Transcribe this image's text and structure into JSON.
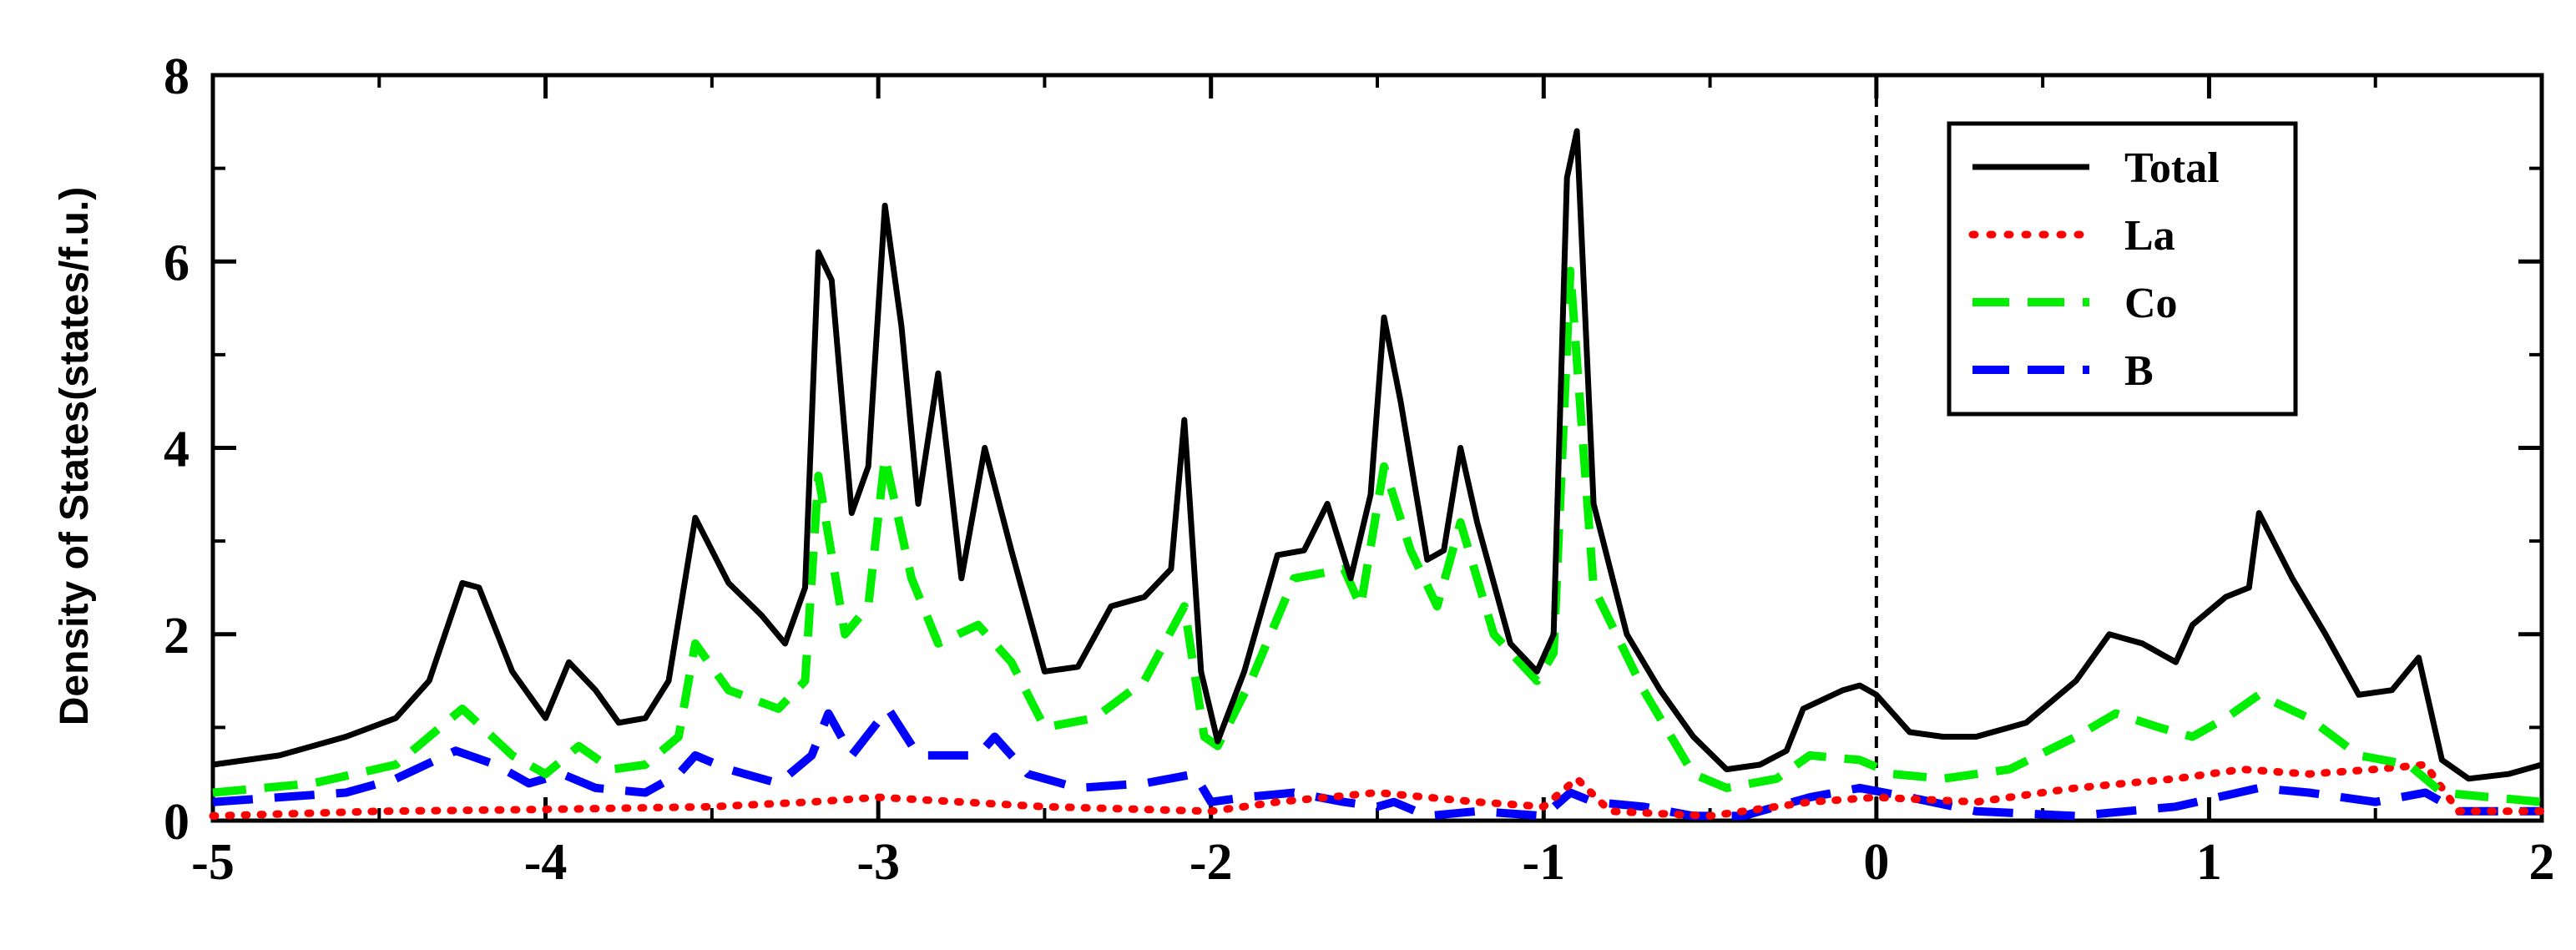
{
  "chart_data": {
    "type": "line",
    "title": "",
    "xlabel": "",
    "ylabel": "Density of States(states/f.u.)",
    "xlim": [
      -5,
      2
    ],
    "ylim": [
      0,
      8
    ],
    "x_ticks": [
      "-5",
      "-4",
      "-3",
      "-2",
      "-1",
      "0",
      "1",
      "2"
    ],
    "y_ticks": [
      "0",
      "2",
      "4",
      "6",
      "8"
    ],
    "grid": false,
    "legend_position": "top-right",
    "fermi_level_marker": 0,
    "series": [
      {
        "name": "Total",
        "color": "#000000",
        "style": "solid",
        "points": [
          [
            -5.0,
            0.6
          ],
          [
            -4.8,
            0.7
          ],
          [
            -4.6,
            0.9
          ],
          [
            -4.45,
            1.1
          ],
          [
            -4.35,
            1.5
          ],
          [
            -4.25,
            2.55
          ],
          [
            -4.2,
            2.5
          ],
          [
            -4.1,
            1.6
          ],
          [
            -4.0,
            1.1
          ],
          [
            -3.93,
            1.7
          ],
          [
            -3.85,
            1.4
          ],
          [
            -3.78,
            1.05
          ],
          [
            -3.7,
            1.1
          ],
          [
            -3.63,
            1.5
          ],
          [
            -3.55,
            3.25
          ],
          [
            -3.45,
            2.55
          ],
          [
            -3.35,
            2.2
          ],
          [
            -3.28,
            1.9
          ],
          [
            -3.22,
            2.5
          ],
          [
            -3.18,
            6.1
          ],
          [
            -3.14,
            5.8
          ],
          [
            -3.08,
            3.3
          ],
          [
            -3.03,
            3.8
          ],
          [
            -2.98,
            6.6
          ],
          [
            -2.93,
            5.3
          ],
          [
            -2.88,
            3.4
          ],
          [
            -2.82,
            4.8
          ],
          [
            -2.75,
            2.6
          ],
          [
            -2.68,
            4.0
          ],
          [
            -2.6,
            2.9
          ],
          [
            -2.5,
            1.6
          ],
          [
            -2.4,
            1.65
          ],
          [
            -2.3,
            2.3
          ],
          [
            -2.2,
            2.4
          ],
          [
            -2.12,
            2.7
          ],
          [
            -2.08,
            4.3
          ],
          [
            -2.03,
            1.6
          ],
          [
            -1.98,
            0.85
          ],
          [
            -1.9,
            1.6
          ],
          [
            -1.8,
            2.85
          ],
          [
            -1.72,
            2.9
          ],
          [
            -1.65,
            3.4
          ],
          [
            -1.58,
            2.6
          ],
          [
            -1.52,
            3.5
          ],
          [
            -1.48,
            5.4
          ],
          [
            -1.43,
            4.5
          ],
          [
            -1.35,
            2.8
          ],
          [
            -1.3,
            2.9
          ],
          [
            -1.25,
            4.0
          ],
          [
            -1.2,
            3.2
          ],
          [
            -1.1,
            1.9
          ],
          [
            -1.02,
            1.6
          ],
          [
            -0.97,
            2.0
          ],
          [
            -0.93,
            6.9
          ],
          [
            -0.9,
            7.4
          ],
          [
            -0.85,
            3.4
          ],
          [
            -0.75,
            2.0
          ],
          [
            -0.65,
            1.4
          ],
          [
            -0.55,
            0.9
          ],
          [
            -0.45,
            0.55
          ],
          [
            -0.35,
            0.6
          ],
          [
            -0.27,
            0.75
          ],
          [
            -0.22,
            1.2
          ],
          [
            -0.1,
            1.4
          ],
          [
            -0.05,
            1.45
          ],
          [
            0.0,
            1.35
          ],
          [
            0.1,
            0.95
          ],
          [
            0.2,
            0.9
          ],
          [
            0.3,
            0.9
          ],
          [
            0.45,
            1.05
          ],
          [
            0.6,
            1.5
          ],
          [
            0.7,
            2.0
          ],
          [
            0.8,
            1.9
          ],
          [
            0.9,
            1.7
          ],
          [
            0.95,
            2.1
          ],
          [
            1.05,
            2.4
          ],
          [
            1.12,
            2.5
          ],
          [
            1.15,
            3.3
          ],
          [
            1.25,
            2.6
          ],
          [
            1.35,
            2.0
          ],
          [
            1.45,
            1.35
          ],
          [
            1.55,
            1.4
          ],
          [
            1.63,
            1.75
          ],
          [
            1.7,
            0.65
          ],
          [
            1.78,
            0.45
          ],
          [
            1.9,
            0.5
          ],
          [
            2.0,
            0.6
          ]
        ]
      },
      {
        "name": "La",
        "color": "#ff0000",
        "style": "dotted",
        "points": [
          [
            -5.0,
            0.05
          ],
          [
            -4.5,
            0.1
          ],
          [
            -4.0,
            0.12
          ],
          [
            -3.5,
            0.15
          ],
          [
            -3.2,
            0.2
          ],
          [
            -3.0,
            0.25
          ],
          [
            -2.5,
            0.15
          ],
          [
            -2.0,
            0.1
          ],
          [
            -1.8,
            0.2
          ],
          [
            -1.5,
            0.3
          ],
          [
            -1.2,
            0.2
          ],
          [
            -1.0,
            0.15
          ],
          [
            -0.9,
            0.45
          ],
          [
            -0.8,
            0.1
          ],
          [
            -0.5,
            0.05
          ],
          [
            -0.2,
            0.2
          ],
          [
            0.0,
            0.25
          ],
          [
            0.3,
            0.2
          ],
          [
            0.6,
            0.35
          ],
          [
            0.9,
            0.45
          ],
          [
            1.1,
            0.55
          ],
          [
            1.3,
            0.5
          ],
          [
            1.5,
            0.55
          ],
          [
            1.65,
            0.6
          ],
          [
            1.75,
            0.1
          ],
          [
            2.0,
            0.1
          ]
        ]
      },
      {
        "name": "Co",
        "color": "#00ee00",
        "style": "dashed",
        "points": [
          [
            -5.0,
            0.3
          ],
          [
            -4.7,
            0.4
          ],
          [
            -4.45,
            0.6
          ],
          [
            -4.25,
            1.2
          ],
          [
            -4.1,
            0.7
          ],
          [
            -4.0,
            0.5
          ],
          [
            -3.9,
            0.8
          ],
          [
            -3.8,
            0.55
          ],
          [
            -3.7,
            0.6
          ],
          [
            -3.6,
            0.9
          ],
          [
            -3.55,
            1.9
          ],
          [
            -3.45,
            1.4
          ],
          [
            -3.3,
            1.2
          ],
          [
            -3.22,
            1.5
          ],
          [
            -3.18,
            3.7
          ],
          [
            -3.1,
            2.0
          ],
          [
            -3.03,
            2.3
          ],
          [
            -2.98,
            3.9
          ],
          [
            -2.9,
            2.6
          ],
          [
            -2.82,
            1.9
          ],
          [
            -2.7,
            2.1
          ],
          [
            -2.6,
            1.7
          ],
          [
            -2.5,
            1.0
          ],
          [
            -2.35,
            1.1
          ],
          [
            -2.2,
            1.5
          ],
          [
            -2.08,
            2.3
          ],
          [
            -2.02,
            0.9
          ],
          [
            -1.98,
            0.8
          ],
          [
            -1.88,
            1.5
          ],
          [
            -1.75,
            2.6
          ],
          [
            -1.6,
            2.7
          ],
          [
            -1.55,
            2.3
          ],
          [
            -1.48,
            3.8
          ],
          [
            -1.4,
            2.9
          ],
          [
            -1.32,
            2.3
          ],
          [
            -1.25,
            3.2
          ],
          [
            -1.15,
            2.0
          ],
          [
            -1.02,
            1.5
          ],
          [
            -0.97,
            1.8
          ],
          [
            -0.92,
            5.9
          ],
          [
            -0.85,
            2.5
          ],
          [
            -0.7,
            1.4
          ],
          [
            -0.55,
            0.5
          ],
          [
            -0.45,
            0.35
          ],
          [
            -0.3,
            0.45
          ],
          [
            -0.2,
            0.7
          ],
          [
            -0.05,
            0.65
          ],
          [
            0.05,
            0.5
          ],
          [
            0.2,
            0.45
          ],
          [
            0.4,
            0.55
          ],
          [
            0.6,
            0.9
          ],
          [
            0.72,
            1.15
          ],
          [
            0.85,
            1.0
          ],
          [
            0.95,
            0.9
          ],
          [
            1.05,
            1.1
          ],
          [
            1.15,
            1.35
          ],
          [
            1.3,
            1.1
          ],
          [
            1.45,
            0.7
          ],
          [
            1.6,
            0.6
          ],
          [
            1.7,
            0.3
          ],
          [
            2.0,
            0.2
          ]
        ]
      },
      {
        "name": "B",
        "color": "#0000ff",
        "style": "long-dashed",
        "points": [
          [
            -5.0,
            0.2
          ],
          [
            -4.6,
            0.3
          ],
          [
            -4.45,
            0.45
          ],
          [
            -4.27,
            0.75
          ],
          [
            -4.15,
            0.6
          ],
          [
            -4.05,
            0.4
          ],
          [
            -3.95,
            0.5
          ],
          [
            -3.85,
            0.35
          ],
          [
            -3.7,
            0.3
          ],
          [
            -3.6,
            0.5
          ],
          [
            -3.55,
            0.7
          ],
          [
            -3.45,
            0.55
          ],
          [
            -3.3,
            0.4
          ],
          [
            -3.2,
            0.7
          ],
          [
            -3.15,
            1.15
          ],
          [
            -3.08,
            0.7
          ],
          [
            -2.97,
            1.2
          ],
          [
            -2.88,
            0.7
          ],
          [
            -2.8,
            0.7
          ],
          [
            -2.7,
            0.7
          ],
          [
            -2.65,
            0.9
          ],
          [
            -2.55,
            0.5
          ],
          [
            -2.4,
            0.35
          ],
          [
            -2.2,
            0.4
          ],
          [
            -2.05,
            0.5
          ],
          [
            -2.0,
            0.2
          ],
          [
            -1.9,
            0.25
          ],
          [
            -1.75,
            0.3
          ],
          [
            -1.6,
            0.2
          ],
          [
            -1.5,
            0.15
          ],
          [
            -1.45,
            0.2
          ],
          [
            -1.35,
            0.05
          ],
          [
            -1.2,
            0.1
          ],
          [
            -1.0,
            0.05
          ],
          [
            -0.92,
            0.3
          ],
          [
            -0.85,
            0.2
          ],
          [
            -0.7,
            0.15
          ],
          [
            -0.55,
            0.05
          ],
          [
            -0.4,
            0.05
          ],
          [
            -0.2,
            0.25
          ],
          [
            -0.05,
            0.35
          ],
          [
            0.1,
            0.25
          ],
          [
            0.3,
            0.1
          ],
          [
            0.6,
            0.05
          ],
          [
            0.9,
            0.15
          ],
          [
            1.15,
            0.35
          ],
          [
            1.3,
            0.3
          ],
          [
            1.5,
            0.2
          ],
          [
            1.65,
            0.3
          ],
          [
            1.75,
            0.1
          ],
          [
            2.0,
            0.1
          ]
        ]
      }
    ]
  }
}
